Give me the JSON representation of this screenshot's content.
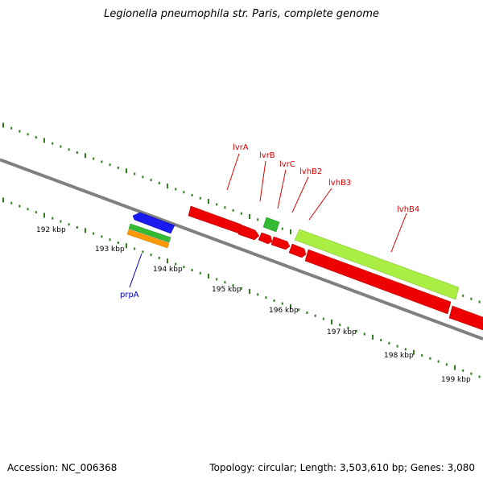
{
  "title": "Legionella pneumophila str. Paris, complete genome",
  "footer": {
    "accession": "Accession: NC_006368",
    "topology": "Topology: circular; Length: 3,503,610 bp; Genes: 3,080"
  },
  "colors": {
    "backbone": "#808080",
    "tick": "#2e7d1a",
    "label_red": "#e00000",
    "label_blue": "#0000cc",
    "feature_red": "#ee0000",
    "feature_blue": "#1a1aee",
    "feature_green": "#33bb33",
    "feature_lime": "#aaee44",
    "feature_orange": "#ff9900"
  },
  "axis": {
    "unit": "kbp",
    "labels": [
      "192 kbp",
      "193 kbp",
      "194 kbp",
      "195 kbp",
      "196 kbp",
      "197 kbp",
      "198 kbp",
      "199 kbp"
    ]
  },
  "genes": [
    {
      "name": "lvrA",
      "color": "red"
    },
    {
      "name": "lvrB",
      "color": "red"
    },
    {
      "name": "lvrC",
      "color": "red"
    },
    {
      "name": "lvhB2",
      "color": "red"
    },
    {
      "name": "lvhB3",
      "color": "red"
    },
    {
      "name": "lvhB4",
      "color": "red"
    },
    {
      "name": "prpA",
      "color": "blue"
    }
  ],
  "icons": {
    "gene_arrow": "block-arrow-icon"
  }
}
